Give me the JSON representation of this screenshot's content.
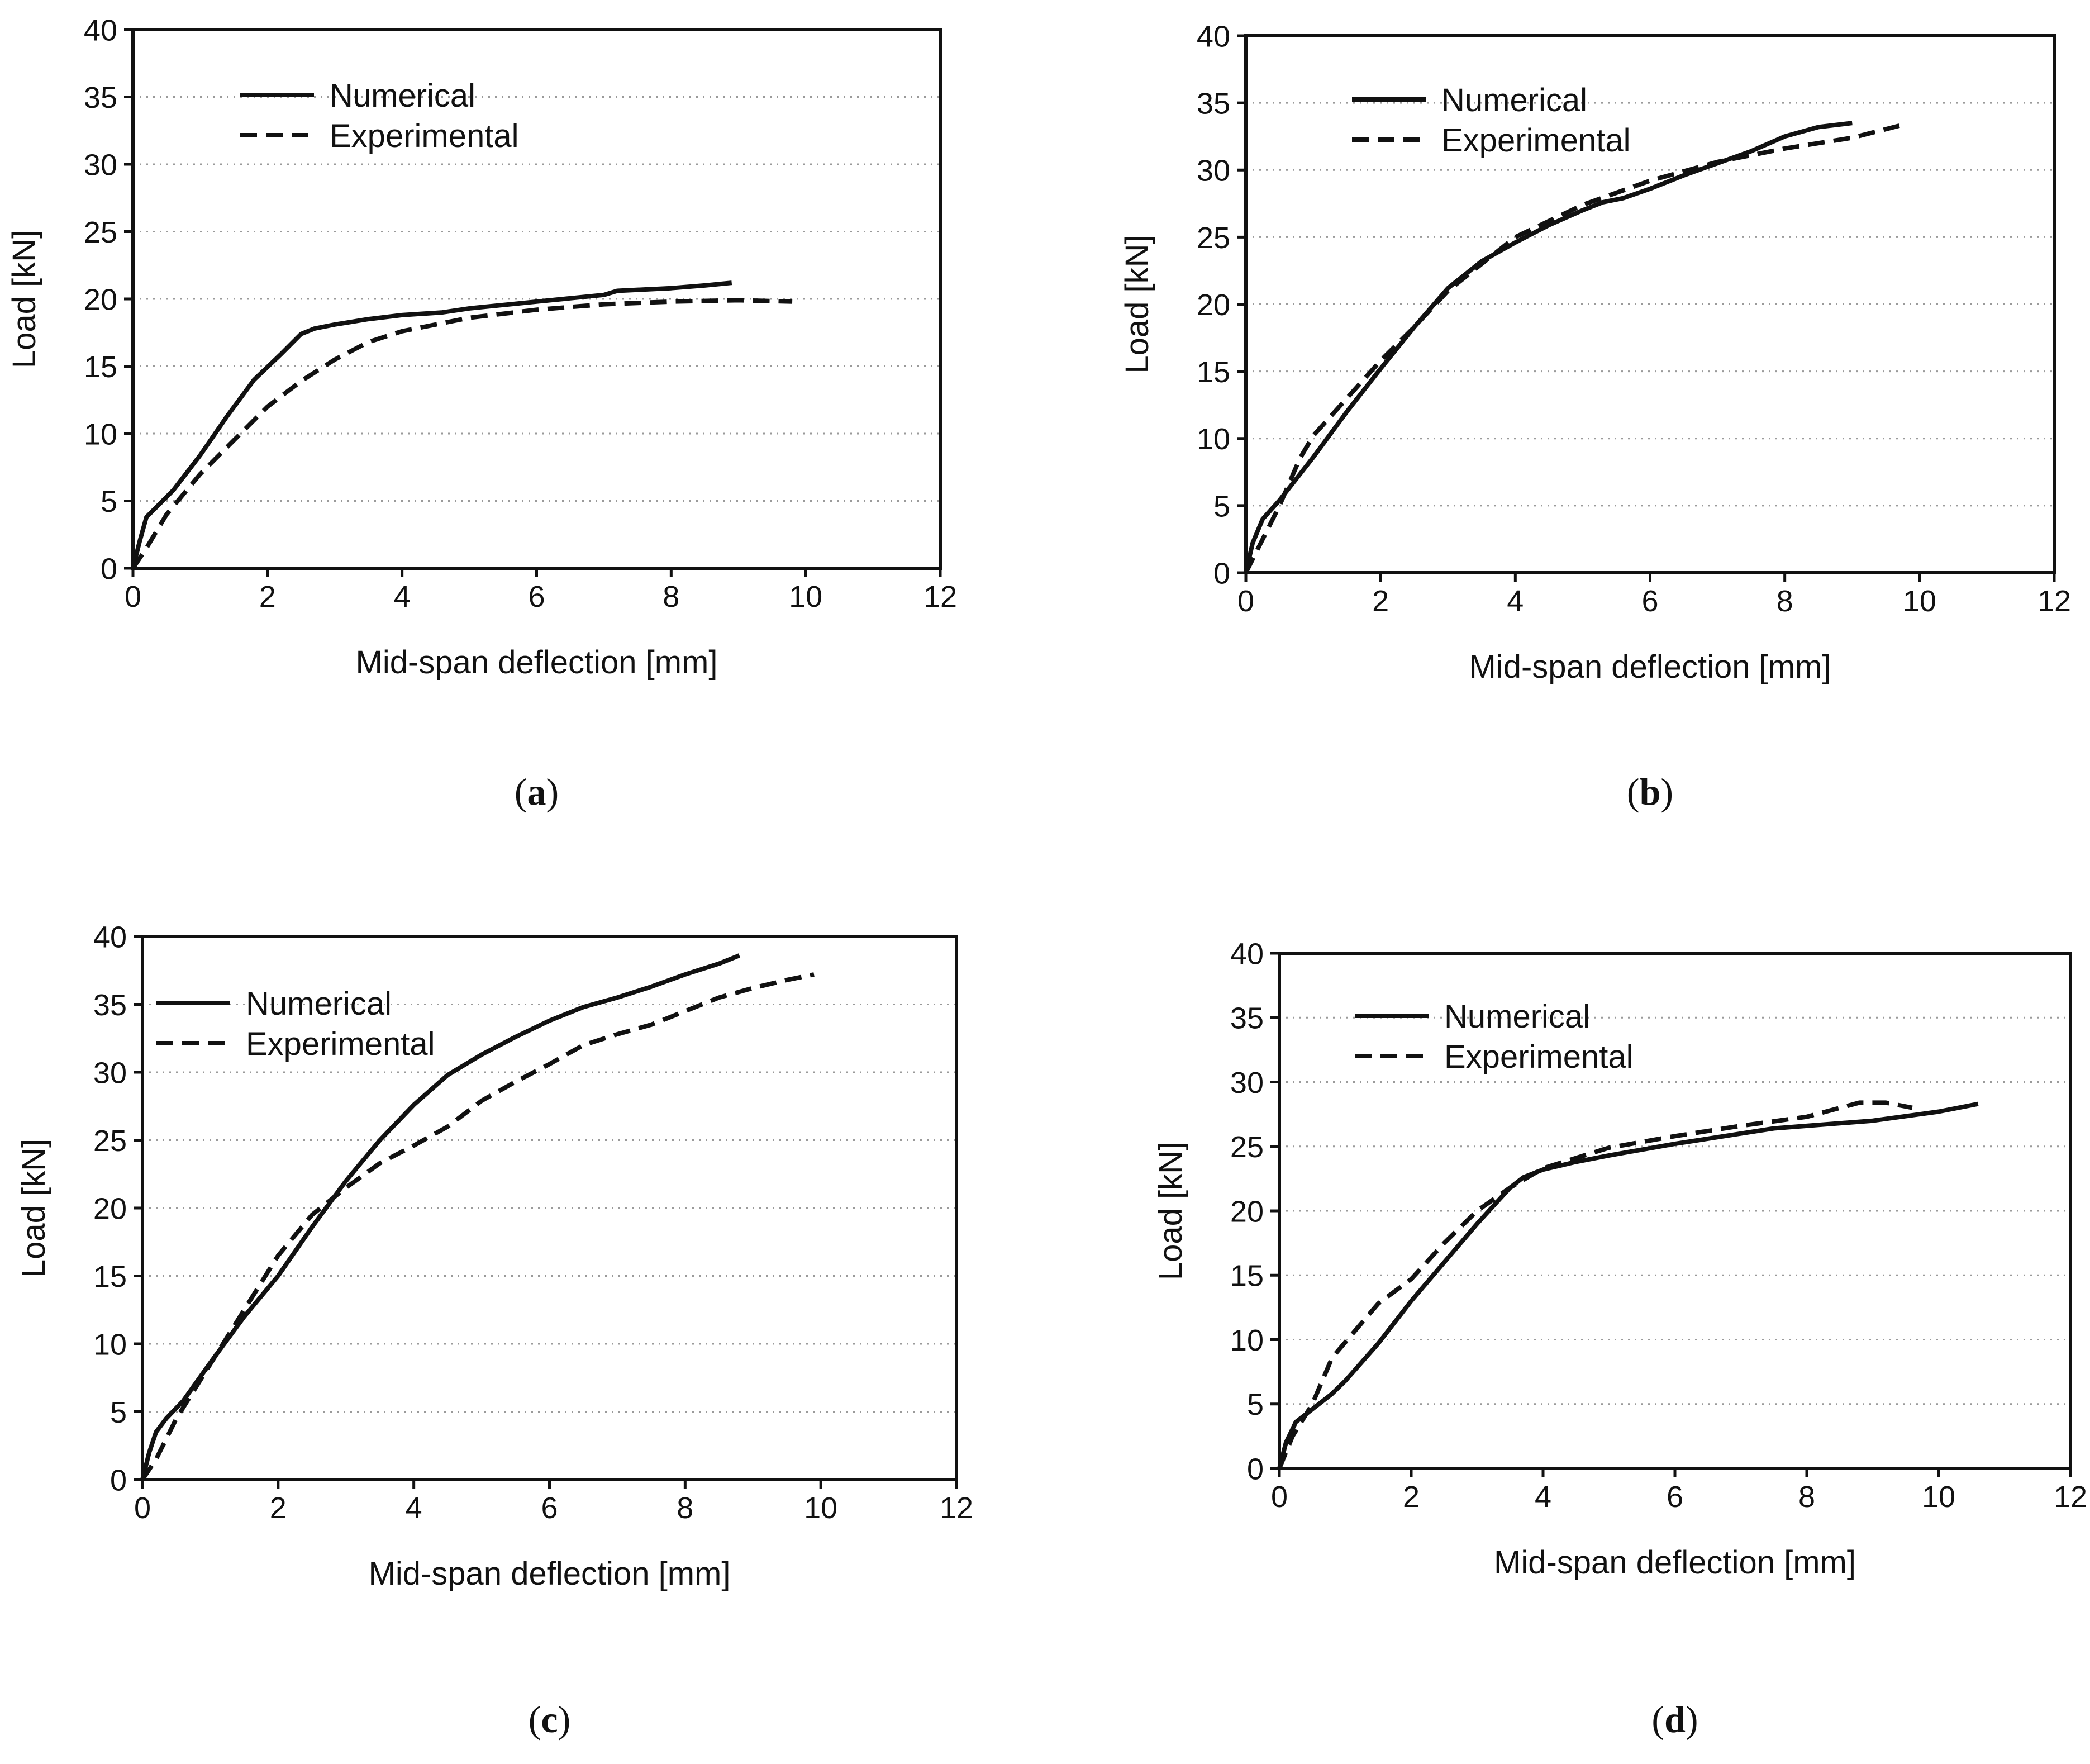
{
  "figure": {
    "colors": {
      "background": "#ffffff",
      "ink": "#111111",
      "grid": "#9a9a9a"
    }
  },
  "chart_data": [
    {
      "type": "line",
      "panel_label": "a",
      "caption": "(a)",
      "xlabel": "Mid-span deflection [mm]",
      "ylabel": "Load [kN]",
      "xlim": [
        0,
        12
      ],
      "ylim": [
        0,
        40
      ],
      "xticks": [
        0,
        2,
        4,
        6,
        8,
        10,
        12
      ],
      "yticks": [
        0,
        5,
        10,
        15,
        20,
        25,
        30,
        35,
        40
      ],
      "grid": "horizontal dotted",
      "legend": "top-left",
      "series": [
        {
          "name": "Numerical",
          "style": "solid",
          "x": [
            0,
            0.1,
            0.2,
            0.4,
            0.6,
            1.0,
            1.4,
            1.8,
            2.2,
            2.5,
            2.7,
            3.0,
            3.5,
            4.0,
            4.6,
            5.0,
            6.0,
            7.0,
            7.2,
            7.6,
            8.0,
            8.5,
            8.9
          ],
          "y": [
            0,
            2.0,
            3.8,
            4.8,
            5.8,
            8.4,
            11.3,
            14.0,
            15.9,
            17.4,
            17.8,
            18.1,
            18.5,
            18.8,
            19.0,
            19.3,
            19.8,
            20.3,
            20.6,
            20.7,
            20.8,
            21.0,
            21.2
          ]
        },
        {
          "name": "Experimental",
          "style": "dashed",
          "x": [
            0,
            0.2,
            0.5,
            1.0,
            1.5,
            2.0,
            2.5,
            3.0,
            3.5,
            4.0,
            4.5,
            5.0,
            6.0,
            7.0,
            8.0,
            9.0,
            9.8
          ],
          "y": [
            0,
            1.5,
            4.0,
            7.0,
            9.5,
            12.0,
            13.9,
            15.5,
            16.8,
            17.6,
            18.1,
            18.6,
            19.2,
            19.6,
            19.8,
            19.9,
            19.8
          ]
        }
      ]
    },
    {
      "type": "line",
      "panel_label": "b",
      "caption": "(b)",
      "xlabel": "Mid-span deflection [mm]",
      "ylabel": "Load [kN]",
      "xlim": [
        0,
        12
      ],
      "ylim": [
        0,
        40
      ],
      "xticks": [
        0,
        2,
        4,
        6,
        8,
        10,
        12
      ],
      "yticks": [
        0,
        5,
        10,
        15,
        20,
        25,
        30,
        35,
        40
      ],
      "grid": "horizontal dotted",
      "legend": "top-left",
      "series": [
        {
          "name": "Numerical",
          "style": "solid",
          "x": [
            0,
            0.1,
            0.25,
            0.5,
            1.0,
            1.5,
            2.0,
            2.5,
            3.0,
            3.5,
            4.0,
            4.5,
            5.0,
            5.3,
            5.6,
            6.0,
            6.5,
            7.0,
            7.5,
            8.0,
            8.5,
            9.0
          ],
          "y": [
            0,
            2.2,
            4.0,
            5.4,
            8.6,
            12.0,
            15.2,
            18.3,
            21.2,
            23.2,
            24.6,
            25.9,
            27.0,
            27.6,
            27.9,
            28.6,
            29.6,
            30.5,
            31.4,
            32.5,
            33.2,
            33.5
          ]
        },
        {
          "name": "Experimental",
          "style": "dashed",
          "x": [
            0,
            0.2,
            0.5,
            0.8,
            1.0,
            1.5,
            2.0,
            2.5,
            3.0,
            3.5,
            4.0,
            5.0,
            6.0,
            7.0,
            8.0,
            9.0,
            9.7
          ],
          "y": [
            0,
            2.0,
            5.0,
            8.5,
            10.2,
            13.0,
            15.8,
            18.3,
            21.0,
            23.0,
            25.0,
            27.4,
            29.2,
            30.6,
            31.6,
            32.4,
            33.3
          ]
        }
      ]
    },
    {
      "type": "line",
      "panel_label": "c",
      "caption": "(c)",
      "xlabel": "Mid-span deflection [mm]",
      "ylabel": "Load [kN]",
      "xlim": [
        0,
        12
      ],
      "ylim": [
        0,
        40
      ],
      "xticks": [
        0,
        2,
        4,
        6,
        8,
        10,
        12
      ],
      "yticks": [
        0,
        5,
        10,
        15,
        20,
        25,
        30,
        35,
        40
      ],
      "grid": "horizontal dotted",
      "legend": "top-left",
      "series": [
        {
          "name": "Numerical",
          "style": "solid",
          "x": [
            0,
            0.1,
            0.2,
            0.35,
            0.6,
            1.0,
            1.5,
            2.0,
            2.5,
            3.0,
            3.5,
            4.0,
            4.5,
            5.0,
            5.5,
            6.0,
            6.5,
            7.0,
            7.5,
            8.0,
            8.5,
            8.8
          ],
          "y": [
            0,
            2.0,
            3.5,
            4.5,
            5.8,
            8.6,
            12.0,
            15.0,
            18.6,
            22.0,
            25.0,
            27.6,
            29.8,
            31.3,
            32.6,
            33.8,
            34.8,
            35.5,
            36.3,
            37.2,
            38.0,
            38.6
          ]
        },
        {
          "name": "Experimental",
          "style": "dashed",
          "x": [
            0,
            0.2,
            0.5,
            1.0,
            1.5,
            2.0,
            2.5,
            3.0,
            3.5,
            4.0,
            4.5,
            5.0,
            5.5,
            6.0,
            6.5,
            7.0,
            7.5,
            8.0,
            8.5,
            9.0,
            9.5,
            9.9
          ],
          "y": [
            0,
            1.5,
            4.5,
            8.5,
            12.5,
            16.5,
            19.5,
            21.5,
            23.3,
            24.6,
            26.0,
            27.9,
            29.3,
            30.6,
            32.0,
            32.8,
            33.5,
            34.5,
            35.5,
            36.2,
            36.8,
            37.2
          ]
        }
      ]
    },
    {
      "type": "line",
      "panel_label": "d",
      "caption": "(d)",
      "xlabel": "Mid-span deflection [mm]",
      "ylabel": "Load [kN]",
      "xlim": [
        0,
        12
      ],
      "ylim": [
        0,
        40
      ],
      "xticks": [
        0,
        2,
        4,
        6,
        8,
        10,
        12
      ],
      "yticks": [
        0,
        5,
        10,
        15,
        20,
        25,
        30,
        35,
        40
      ],
      "grid": "horizontal dotted",
      "legend": "top-left",
      "series": [
        {
          "name": "Numerical",
          "style": "solid",
          "x": [
            0,
            0.1,
            0.25,
            0.5,
            0.8,
            1.0,
            1.5,
            2.0,
            2.5,
            3.0,
            3.5,
            3.7,
            4.0,
            4.5,
            5.0,
            6.0,
            7.0,
            7.5,
            8.0,
            9.0,
            10.0,
            10.6
          ],
          "y": [
            0,
            2.0,
            3.6,
            4.6,
            5.8,
            6.8,
            9.7,
            13.0,
            16.0,
            19.0,
            21.8,
            22.6,
            23.2,
            23.8,
            24.3,
            25.2,
            26.0,
            26.4,
            26.6,
            27.0,
            27.7,
            28.3
          ]
        },
        {
          "name": "Experimental",
          "style": "dashed",
          "x": [
            0,
            0.2,
            0.5,
            0.8,
            1.0,
            1.5,
            2.0,
            2.5,
            3.0,
            3.5,
            4.0,
            5.0,
            6.0,
            7.0,
            8.0,
            8.8,
            9.2,
            9.6
          ],
          "y": [
            0,
            2.5,
            5.0,
            8.6,
            9.8,
            12.8,
            14.7,
            17.5,
            20.0,
            21.8,
            23.3,
            24.9,
            25.8,
            26.6,
            27.3,
            28.4,
            28.4,
            28.0
          ]
        }
      ]
    }
  ]
}
